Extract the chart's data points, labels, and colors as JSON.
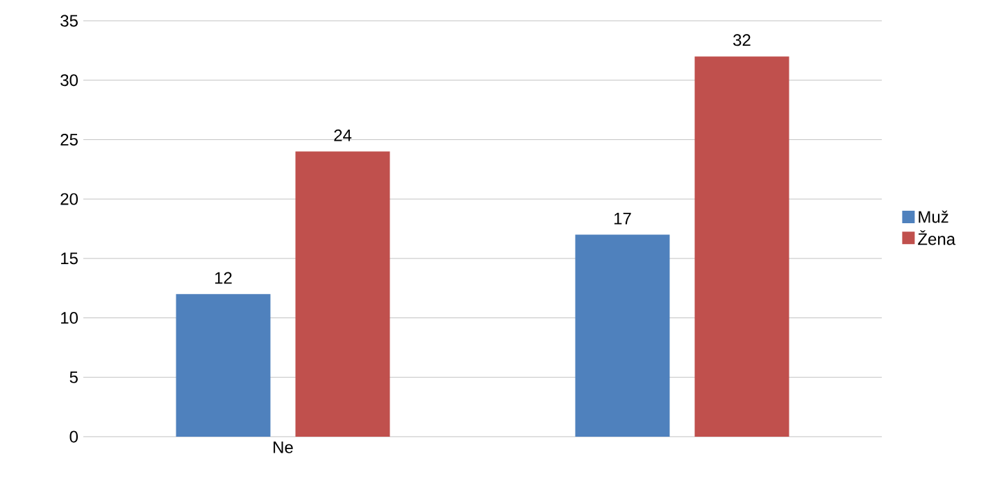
{
  "chart_data": {
    "type": "bar",
    "categories": [
      "Ne",
      null
    ],
    "series": [
      {
        "name": "Muž",
        "color": "#4f81bd",
        "values": [
          12,
          17
        ]
      },
      {
        "name": "Žena",
        "color": "#c0504d",
        "values": [
          24,
          32
        ]
      }
    ],
    "ylim": [
      0,
      35
    ],
    "yticks": [
      0,
      5,
      10,
      15,
      20,
      25,
      30,
      35
    ],
    "grid": "y",
    "legend": "right",
    "data_labels": true
  }
}
